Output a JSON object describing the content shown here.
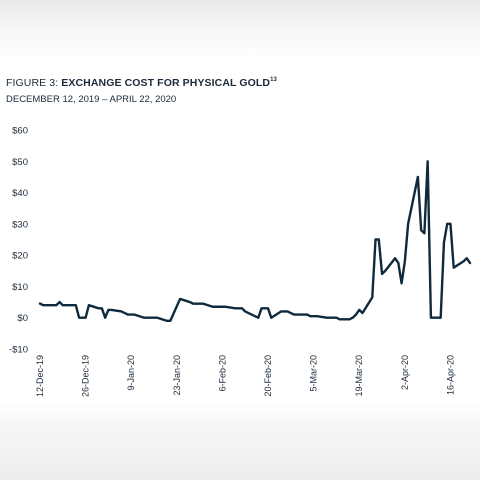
{
  "figure": {
    "prefix": "FIGURE 3: ",
    "title": "EXCHANGE COST FOR PHYSICAL GOLD",
    "superscript": "13",
    "subtitle": "DECEMBER 12, 2019 – APRIL 22, 2020"
  },
  "colors": {
    "line": "#0f2a3c",
    "text": "#1b2a3a"
  },
  "chart_data": {
    "type": "line",
    "title": "EXCHANGE COST FOR PHYSICAL GOLD",
    "subtitle": "DECEMBER 12, 2019 – APRIL 22, 2020",
    "xlabel": "",
    "ylabel": "",
    "ylim": [
      -10,
      60
    ],
    "y_ticks": [
      60,
      50,
      40,
      30,
      20,
      10,
      0,
      -10
    ],
    "y_tick_labels": [
      "$60",
      "$50",
      "$40",
      "$30",
      "$20",
      "$10",
      "$0",
      "-$10"
    ],
    "x_ticks": [
      "2019-12-12",
      "2019-12-26",
      "2020-01-09",
      "2020-01-23",
      "2020-02-06",
      "2020-02-20",
      "2020-03-05",
      "2020-03-19",
      "2020-04-02",
      "2020-04-16"
    ],
    "x_tick_labels": [
      "12-Dec-19",
      "26-Dec-19",
      "9-Jan-20",
      "23-Jan-20",
      "6-Feb-20",
      "20-Feb-20",
      "5-Mar-20",
      "19-Mar-20",
      "2-Apr-20",
      "16-Apr-20"
    ],
    "grid": false,
    "legend": "none",
    "series": [
      {
        "points": [
          [
            "2019-12-12",
            4.5
          ],
          [
            "2019-12-13",
            4.0
          ],
          [
            "2019-12-16",
            4.0
          ],
          [
            "2019-12-17",
            4.0
          ],
          [
            "2019-12-18",
            5.0
          ],
          [
            "2019-12-19",
            4.0
          ],
          [
            "2019-12-20",
            4.0
          ],
          [
            "2019-12-23",
            4.0
          ],
          [
            "2019-12-24",
            0.0
          ],
          [
            "2019-12-26",
            0.0
          ],
          [
            "2019-12-27",
            4.0
          ],
          [
            "2019-12-30",
            3.0
          ],
          [
            "2019-12-31",
            3.0
          ],
          [
            "2020-01-01",
            0.0
          ],
          [
            "2020-01-02",
            2.5
          ],
          [
            "2020-01-03",
            2.5
          ],
          [
            "2020-01-06",
            2.0
          ],
          [
            "2020-01-07",
            1.5
          ],
          [
            "2020-01-08",
            1.0
          ],
          [
            "2020-01-09",
            1.0
          ],
          [
            "2020-01-10",
            1.0
          ],
          [
            "2020-01-13",
            0.0
          ],
          [
            "2020-01-14",
            0.0
          ],
          [
            "2020-01-15",
            0.0
          ],
          [
            "2020-01-16",
            0.0
          ],
          [
            "2020-01-17",
            0.0
          ],
          [
            "2020-01-20",
            -1.0
          ],
          [
            "2020-01-21",
            -1.0
          ],
          [
            "2020-01-24",
            6.0
          ],
          [
            "2020-01-27",
            5.0
          ],
          [
            "2020-01-28",
            4.5
          ],
          [
            "2020-01-29",
            4.5
          ],
          [
            "2020-01-30",
            4.5
          ],
          [
            "2020-01-31",
            4.5
          ],
          [
            "2020-02-03",
            3.5
          ],
          [
            "2020-02-04",
            3.5
          ],
          [
            "2020-02-05",
            3.5
          ],
          [
            "2020-02-06",
            3.5
          ],
          [
            "2020-02-07",
            3.5
          ],
          [
            "2020-02-10",
            3.0
          ],
          [
            "2020-02-11",
            3.0
          ],
          [
            "2020-02-12",
            3.0
          ],
          [
            "2020-02-13",
            2.0
          ],
          [
            "2020-02-14",
            1.5
          ],
          [
            "2020-02-17",
            0.0
          ],
          [
            "2020-02-18",
            3.0
          ],
          [
            "2020-02-19",
            3.0
          ],
          [
            "2020-02-20",
            3.0
          ],
          [
            "2020-02-21",
            0.0
          ],
          [
            "2020-02-24",
            2.0
          ],
          [
            "2020-02-25",
            2.0
          ],
          [
            "2020-02-26",
            2.0
          ],
          [
            "2020-02-27",
            1.5
          ],
          [
            "2020-02-28",
            1.0
          ],
          [
            "2020-03-02",
            1.0
          ],
          [
            "2020-03-03",
            1.0
          ],
          [
            "2020-03-04",
            0.5
          ],
          [
            "2020-03-05",
            0.5
          ],
          [
            "2020-03-06",
            0.5
          ],
          [
            "2020-03-09",
            0.0
          ],
          [
            "2020-03-10",
            0.0
          ],
          [
            "2020-03-11",
            0.0
          ],
          [
            "2020-03-12",
            0.0
          ],
          [
            "2020-03-13",
            -0.5
          ],
          [
            "2020-03-16",
            -0.5
          ],
          [
            "2020-03-17",
            0.0
          ],
          [
            "2020-03-18",
            1.0
          ],
          [
            "2020-03-19",
            2.5
          ],
          [
            "2020-03-20",
            1.5
          ],
          [
            "2020-03-23",
            6.5
          ],
          [
            "2020-03-24",
            25.0
          ],
          [
            "2020-03-25",
            25.0
          ],
          [
            "2020-03-26",
            14.0
          ],
          [
            "2020-03-27",
            15.0
          ],
          [
            "2020-03-30",
            19.0
          ],
          [
            "2020-03-31",
            17.5
          ],
          [
            "2020-04-01",
            11.0
          ],
          [
            "2020-04-02",
            18.0
          ],
          [
            "2020-04-03",
            30.0
          ],
          [
            "2020-04-06",
            45.0
          ],
          [
            "2020-04-07",
            28.0
          ],
          [
            "2020-04-08",
            27.0
          ],
          [
            "2020-04-09",
            50.0
          ],
          [
            "2020-04-10",
            0.0
          ],
          [
            "2020-04-13",
            0.0
          ],
          [
            "2020-04-14",
            24.0
          ],
          [
            "2020-04-15",
            30.0
          ],
          [
            "2020-04-16",
            30.0
          ],
          [
            "2020-04-17",
            16.0
          ],
          [
            "2020-04-20",
            18.0
          ],
          [
            "2020-04-21",
            19.0
          ],
          [
            "2020-04-22",
            17.5
          ]
        ]
      }
    ]
  }
}
